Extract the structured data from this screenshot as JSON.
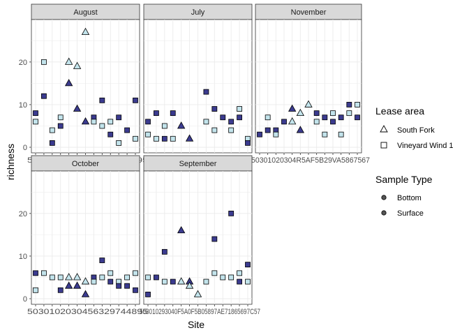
{
  "chart_data": {
    "type": "scatter",
    "ylabel": "richness",
    "xlabel": "Site",
    "ylim": [
      0,
      28
    ],
    "y_ticks": [
      0,
      10,
      20
    ],
    "x_tick_labels_row_top": "5030102030456329744895",
    "x_tick_labels_row_bottom": "503010293040F5A0F5B05897AE71865697C57",
    "x_tick_labels_nov": "50301020304R5AF5B29VA5867567",
    "colors": {
      "dark": "#3b3b8f",
      "light": "#c3e4ec",
      "panel_strip": "#d9d9d9",
      "grid": "#ebebeb"
    },
    "legend_lease": {
      "title": "Lease area",
      "items": [
        {
          "label": "South Fork",
          "shape": "triangle"
        },
        {
          "label": "Vineyard Wind 1",
          "shape": "square"
        }
      ]
    },
    "legend_sample": {
      "title": "Sample Type",
      "items": [
        {
          "label": "Bottom",
          "fill": "#3b3b8f"
        },
        {
          "label": "Surface",
          "fill": "#c3e4ec"
        }
      ]
    },
    "panels": [
      {
        "name": "August",
        "points": [
          {
            "x": 1,
            "y": 8,
            "s": "sq",
            "f": "dark"
          },
          {
            "x": 1,
            "y": 6,
            "s": "sq",
            "f": "light"
          },
          {
            "x": 2,
            "y": 20,
            "s": "sq",
            "f": "light"
          },
          {
            "x": 2,
            "y": 12,
            "s": "sq",
            "f": "dark"
          },
          {
            "x": 3,
            "y": 4,
            "s": "sq",
            "f": "light"
          },
          {
            "x": 3,
            "y": 1,
            "s": "sq",
            "f": "dark"
          },
          {
            "x": 4,
            "y": 7,
            "s": "sq",
            "f": "light"
          },
          {
            "x": 4,
            "y": 5,
            "s": "sq",
            "f": "dark"
          },
          {
            "x": 5,
            "y": 20,
            "s": "tri",
            "f": "light"
          },
          {
            "x": 5,
            "y": 15,
            "s": "tri",
            "f": "dark"
          },
          {
            "x": 6,
            "y": 19,
            "s": "tri",
            "f": "light"
          },
          {
            "x": 6,
            "y": 9,
            "s": "tri",
            "f": "dark"
          },
          {
            "x": 7,
            "y": 27,
            "s": "tri",
            "f": "light"
          },
          {
            "x": 7,
            "y": 6,
            "s": "tri",
            "f": "dark"
          },
          {
            "x": 8,
            "y": 7,
            "s": "sq",
            "f": "dark"
          },
          {
            "x": 8,
            "y": 6,
            "s": "sq",
            "f": "light"
          },
          {
            "x": 9,
            "y": 11,
            "s": "sq",
            "f": "dark"
          },
          {
            "x": 9,
            "y": 5,
            "s": "sq",
            "f": "light"
          },
          {
            "x": 10,
            "y": 6,
            "s": "sq",
            "f": "light"
          },
          {
            "x": 10,
            "y": 3,
            "s": "sq",
            "f": "dark"
          },
          {
            "x": 11,
            "y": 7,
            "s": "sq",
            "f": "dark"
          },
          {
            "x": 11,
            "y": 1,
            "s": "sq",
            "f": "light"
          },
          {
            "x": 12,
            "y": 4,
            "s": "sq",
            "f": "dark"
          },
          {
            "x": 13,
            "y": 11,
            "s": "sq",
            "f": "dark"
          },
          {
            "x": 13,
            "y": 2,
            "s": "sq",
            "f": "light"
          }
        ]
      },
      {
        "name": "July",
        "points": [
          {
            "x": 1,
            "y": 6,
            "s": "sq",
            "f": "dark"
          },
          {
            "x": 1,
            "y": 3,
            "s": "sq",
            "f": "light"
          },
          {
            "x": 2,
            "y": 8,
            "s": "sq",
            "f": "dark"
          },
          {
            "x": 2,
            "y": 2,
            "s": "sq",
            "f": "light"
          },
          {
            "x": 3,
            "y": 5,
            "s": "sq",
            "f": "light"
          },
          {
            "x": 3,
            "y": 2,
            "s": "sq",
            "f": "dark"
          },
          {
            "x": 4,
            "y": 8,
            "s": "sq",
            "f": "dark"
          },
          {
            "x": 4,
            "y": 2,
            "s": "sq",
            "f": "light"
          },
          {
            "x": 5,
            "y": 5,
            "s": "tri",
            "f": "dark"
          },
          {
            "x": 6,
            "y": 2,
            "s": "tri",
            "f": "dark"
          },
          {
            "x": 8,
            "y": 13,
            "s": "sq",
            "f": "dark"
          },
          {
            "x": 8,
            "y": 6,
            "s": "sq",
            "f": "light"
          },
          {
            "x": 9,
            "y": 9,
            "s": "sq",
            "f": "dark"
          },
          {
            "x": 9,
            "y": 4,
            "s": "sq",
            "f": "light"
          },
          {
            "x": 10,
            "y": 7,
            "s": "sq",
            "f": "dark"
          },
          {
            "x": 11,
            "y": 6,
            "s": "sq",
            "f": "dark"
          },
          {
            "x": 11,
            "y": 4,
            "s": "sq",
            "f": "light"
          },
          {
            "x": 12,
            "y": 9,
            "s": "sq",
            "f": "light"
          },
          {
            "x": 12,
            "y": 7,
            "s": "sq",
            "f": "dark"
          },
          {
            "x": 13,
            "y": 2,
            "s": "sq",
            "f": "light"
          },
          {
            "x": 13,
            "y": 1,
            "s": "sq",
            "f": "dark"
          }
        ]
      },
      {
        "name": "November",
        "points": [
          {
            "x": 1,
            "y": 3,
            "s": "sq",
            "f": "dark"
          },
          {
            "x": 2,
            "y": 7,
            "s": "sq",
            "f": "light"
          },
          {
            "x": 2,
            "y": 4,
            "s": "sq",
            "f": "dark"
          },
          {
            "x": 3,
            "y": 4,
            "s": "sq",
            "f": "dark"
          },
          {
            "x": 3,
            "y": 3,
            "s": "sq",
            "f": "light"
          },
          {
            "x": 4,
            "y": 6,
            "s": "sq",
            "f": "dark"
          },
          {
            "x": 5,
            "y": 9,
            "s": "tri",
            "f": "dark"
          },
          {
            "x": 5,
            "y": 6,
            "s": "tri",
            "f": "light"
          },
          {
            "x": 6,
            "y": 8,
            "s": "tri",
            "f": "light"
          },
          {
            "x": 6,
            "y": 4,
            "s": "tri",
            "f": "dark"
          },
          {
            "x": 7,
            "y": 10,
            "s": "tri",
            "f": "light"
          },
          {
            "x": 8,
            "y": 8,
            "s": "sq",
            "f": "dark"
          },
          {
            "x": 8,
            "y": 6,
            "s": "sq",
            "f": "light"
          },
          {
            "x": 9,
            "y": 7,
            "s": "sq",
            "f": "dark"
          },
          {
            "x": 9,
            "y": 3,
            "s": "sq",
            "f": "light"
          },
          {
            "x": 10,
            "y": 8,
            "s": "sq",
            "f": "light"
          },
          {
            "x": 10,
            "y": 6,
            "s": "sq",
            "f": "dark"
          },
          {
            "x": 11,
            "y": 7,
            "s": "sq",
            "f": "dark"
          },
          {
            "x": 11,
            "y": 3,
            "s": "sq",
            "f": "light"
          },
          {
            "x": 12,
            "y": 10,
            "s": "sq",
            "f": "dark"
          },
          {
            "x": 12,
            "y": 8,
            "s": "sq",
            "f": "light"
          },
          {
            "x": 13,
            "y": 10,
            "s": "sq",
            "f": "light"
          },
          {
            "x": 13,
            "y": 7,
            "s": "sq",
            "f": "dark"
          }
        ]
      },
      {
        "name": "October",
        "points": [
          {
            "x": 1,
            "y": 6,
            "s": "sq",
            "f": "dark"
          },
          {
            "x": 1,
            "y": 2,
            "s": "sq",
            "f": "light"
          },
          {
            "x": 2,
            "y": 6,
            "s": "sq",
            "f": "light"
          },
          {
            "x": 3,
            "y": 5,
            "s": "sq",
            "f": "light"
          },
          {
            "x": 4,
            "y": 5,
            "s": "sq",
            "f": "light"
          },
          {
            "x": 4,
            "y": 2,
            "s": "sq",
            "f": "dark"
          },
          {
            "x": 5,
            "y": 5,
            "s": "tri",
            "f": "light"
          },
          {
            "x": 5,
            "y": 3,
            "s": "tri",
            "f": "dark"
          },
          {
            "x": 6,
            "y": 5,
            "s": "tri",
            "f": "light"
          },
          {
            "x": 6,
            "y": 3,
            "s": "tri",
            "f": "dark"
          },
          {
            "x": 7,
            "y": 4,
            "s": "tri",
            "f": "light"
          },
          {
            "x": 7,
            "y": 1,
            "s": "tri",
            "f": "dark"
          },
          {
            "x": 8,
            "y": 5,
            "s": "sq",
            "f": "dark"
          },
          {
            "x": 8,
            "y": 4,
            "s": "sq",
            "f": "light"
          },
          {
            "x": 9,
            "y": 9,
            "s": "sq",
            "f": "dark"
          },
          {
            "x": 9,
            "y": 5,
            "s": "sq",
            "f": "light"
          },
          {
            "x": 10,
            "y": 6,
            "s": "sq",
            "f": "light"
          },
          {
            "x": 10,
            "y": 4,
            "s": "sq",
            "f": "dark"
          },
          {
            "x": 11,
            "y": 4,
            "s": "sq",
            "f": "light"
          },
          {
            "x": 11,
            "y": 3,
            "s": "sq",
            "f": "dark"
          },
          {
            "x": 12,
            "y": 5,
            "s": "sq",
            "f": "light"
          },
          {
            "x": 12,
            "y": 3,
            "s": "sq",
            "f": "dark"
          },
          {
            "x": 13,
            "y": 6,
            "s": "sq",
            "f": "light"
          },
          {
            "x": 13,
            "y": 2,
            "s": "sq",
            "f": "dark"
          }
        ]
      },
      {
        "name": "September",
        "points": [
          {
            "x": 1,
            "y": 5,
            "s": "sq",
            "f": "light"
          },
          {
            "x": 1,
            "y": 1,
            "s": "sq",
            "f": "dark"
          },
          {
            "x": 2,
            "y": 5,
            "s": "sq",
            "f": "dark"
          },
          {
            "x": 3,
            "y": 11,
            "s": "sq",
            "f": "dark"
          },
          {
            "x": 3,
            "y": 4,
            "s": "sq",
            "f": "light"
          },
          {
            "x": 4,
            "y": 4,
            "s": "sq",
            "f": "dark"
          },
          {
            "x": 5,
            "y": 16,
            "s": "tri",
            "f": "dark"
          },
          {
            "x": 5,
            "y": 4,
            "s": "tri",
            "f": "light"
          },
          {
            "x": 6,
            "y": 4,
            "s": "tri",
            "f": "dark"
          },
          {
            "x": 6,
            "y": 3,
            "s": "tri",
            "f": "light"
          },
          {
            "x": 7,
            "y": 1,
            "s": "tri",
            "f": "light"
          },
          {
            "x": 8,
            "y": 4,
            "s": "sq",
            "f": "light"
          },
          {
            "x": 9,
            "y": 14,
            "s": "sq",
            "f": "dark"
          },
          {
            "x": 9,
            "y": 6,
            "s": "sq",
            "f": "light"
          },
          {
            "x": 10,
            "y": 5,
            "s": "sq",
            "f": "light"
          },
          {
            "x": 11,
            "y": 20,
            "s": "sq",
            "f": "dark"
          },
          {
            "x": 11,
            "y": 5,
            "s": "sq",
            "f": "light"
          },
          {
            "x": 12,
            "y": 6,
            "s": "sq",
            "f": "light"
          },
          {
            "x": 12,
            "y": 4,
            "s": "sq",
            "f": "dark"
          },
          {
            "x": 13,
            "y": 8,
            "s": "sq",
            "f": "dark"
          },
          {
            "x": 13,
            "y": 4,
            "s": "sq",
            "f": "light"
          }
        ]
      }
    ]
  }
}
